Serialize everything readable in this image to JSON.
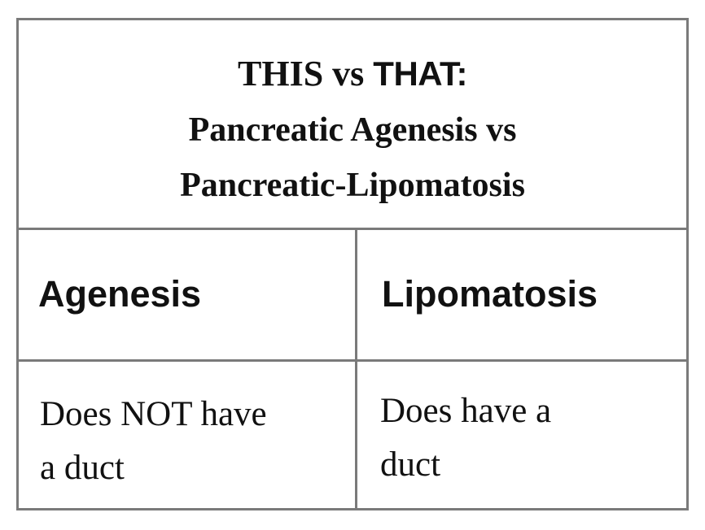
{
  "title": {
    "this_vs": "THIS vs ",
    "that": "THAT:",
    "line2": "Pancreatic Agenesis vs",
    "line3": "Pancreatic-Lipomatosis"
  },
  "columns": [
    {
      "header": "Agenesis",
      "line1": "Does NOT have",
      "line2": "a duct"
    },
    {
      "header": "Lipomatosis",
      "line1": "Does have a",
      "line2": "duct"
    }
  ]
}
